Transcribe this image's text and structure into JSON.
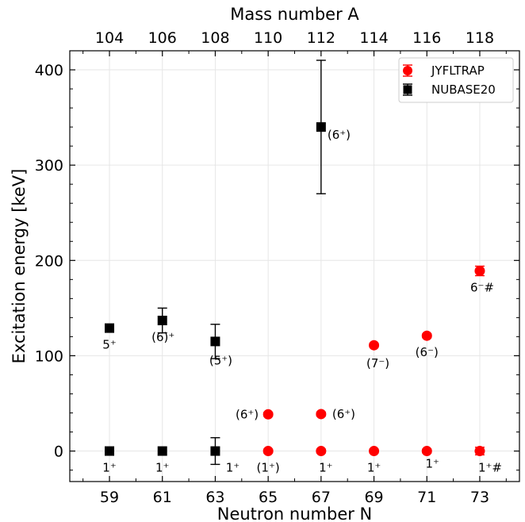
{
  "chart_data": {
    "type": "scatter",
    "xlabel": "Neutron number N",
    "ylabel": "Excitation energy [keV]",
    "top_xlabel": "Mass number A",
    "xlim": [
      57.5,
      74.5
    ],
    "ylim": [
      -32,
      420
    ],
    "grid": true,
    "legend_position": "top-right",
    "x_ticks": [
      59,
      61,
      63,
      65,
      67,
      69,
      71,
      73
    ],
    "x_tick_labels": [
      "59",
      "61",
      "63",
      "65",
      "67",
      "69",
      "71",
      "73"
    ],
    "y_ticks": [
      0,
      100,
      200,
      300,
      400
    ],
    "y_tick_labels": [
      "0",
      "100",
      "200",
      "300",
      "400"
    ],
    "top_ticks": [
      59,
      61,
      63,
      65,
      67,
      69,
      71,
      73
    ],
    "top_tick_labels": [
      "104",
      "106",
      "108",
      "110",
      "112",
      "114",
      "116",
      "118"
    ],
    "series": [
      {
        "name": "JYFLTRAP",
        "color": "#ff0000",
        "marker": "circle",
        "points": [
          {
            "x": 65,
            "y": 0,
            "err": 2
          },
          {
            "x": 65,
            "y": 38.5,
            "err": 2
          },
          {
            "x": 67,
            "y": 0,
            "err": 2
          },
          {
            "x": 67,
            "y": 38.8,
            "err": 2
          },
          {
            "x": 69,
            "y": 0,
            "err": 2
          },
          {
            "x": 69,
            "y": 111,
            "err": 2
          },
          {
            "x": 71,
            "y": 0,
            "err": 2
          },
          {
            "x": 71,
            "y": 121,
            "err": 2
          },
          {
            "x": 73,
            "y": 0,
            "err": 4
          },
          {
            "x": 73,
            "y": 189,
            "err": 5
          }
        ]
      },
      {
        "name": "NUBASE20",
        "color": "#000000",
        "marker": "square",
        "points": [
          {
            "x": 59,
            "y": 0,
            "err": 0
          },
          {
            "x": 59,
            "y": 129,
            "err": 0
          },
          {
            "x": 61,
            "y": 0,
            "err": 0
          },
          {
            "x": 61,
            "y": 137,
            "err": 13
          },
          {
            "x": 63,
            "y": 0,
            "err": 14
          },
          {
            "x": 63,
            "y": 115,
            "err": 18
          },
          {
            "x": 67,
            "y": 340,
            "err": 70
          }
        ]
      }
    ],
    "annotations": [
      {
        "text": "1⁺",
        "x": 59,
        "y": 0
      },
      {
        "text": "5⁺",
        "x": 59,
        "y": 129
      },
      {
        "text": "1⁺",
        "x": 61,
        "y": 0
      },
      {
        "text": "(6)⁺",
        "x": 61,
        "y": 137
      },
      {
        "text": "1⁺",
        "x": 63,
        "y": 0
      },
      {
        "text": "(5⁺)",
        "x": 63,
        "y": 115
      },
      {
        "text": "(1⁺)",
        "x": 65,
        "y": 0
      },
      {
        "text": "(6⁺)",
        "x": 65,
        "y": 38.5
      },
      {
        "text": "1⁺",
        "x": 67,
        "y": 0
      },
      {
        "text": "(6⁺)",
        "x": 67,
        "y": 38.8
      },
      {
        "text": "(6⁺)",
        "x": 67,
        "y": 340
      },
      {
        "text": "1⁺",
        "x": 69,
        "y": 0
      },
      {
        "text": "(7⁻)",
        "x": 69,
        "y": 111
      },
      {
        "text": "1⁺",
        "x": 71,
        "y": 0
      },
      {
        "text": "(6⁻)",
        "x": 71,
        "y": 121
      },
      {
        "text": "1⁺#",
        "x": 73,
        "y": 0
      },
      {
        "text": "6⁻#",
        "x": 73,
        "y": 189
      }
    ]
  }
}
